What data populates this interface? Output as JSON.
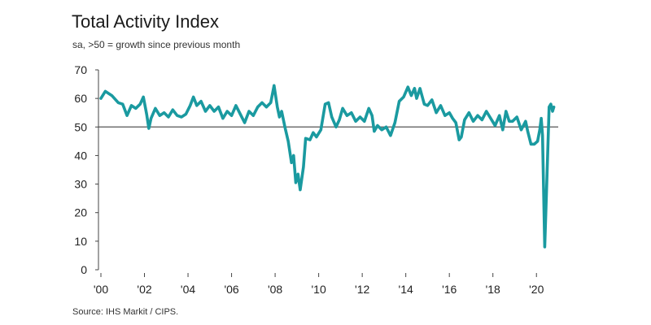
{
  "header": {
    "title": "Total Activity Index",
    "subtitle": "sa, >50 = growth since previous month"
  },
  "footer": {
    "source": "Source: IHS Markit / CIPS."
  },
  "colors": {
    "series": "#1a9aa0",
    "axis": "#444444",
    "reference": "#555555"
  },
  "chart_data": {
    "type": "line",
    "title": "Total Activity Index",
    "subtitle": "sa, >50 = growth since previous month",
    "xlabel": "",
    "ylabel": "",
    "xlim": [
      2000,
      2021
    ],
    "ylim": [
      0,
      70
    ],
    "y_ticks": [
      0,
      10,
      20,
      30,
      40,
      50,
      60,
      70
    ],
    "x_ticks": [
      {
        "value": 2000,
        "label": "'00"
      },
      {
        "value": 2002,
        "label": "'02"
      },
      {
        "value": 2004,
        "label": "'04"
      },
      {
        "value": 2006,
        "label": "'06"
      },
      {
        "value": 2008,
        "label": "'08"
      },
      {
        "value": 2010,
        "label": "'10"
      },
      {
        "value": 2012,
        "label": "'12"
      },
      {
        "value": 2014,
        "label": "'14"
      },
      {
        "value": 2016,
        "label": "'16"
      },
      {
        "value": 2018,
        "label": "'18"
      },
      {
        "value": 2020,
        "label": "'20"
      }
    ],
    "reference_line": 50,
    "grid": false,
    "series": [
      {
        "values": [
          [
            2000.0,
            60.0
          ],
          [
            2000.2,
            62.5
          ],
          [
            2000.5,
            61.0
          ],
          [
            2000.8,
            58.5
          ],
          [
            2001.0,
            58.0
          ],
          [
            2001.2,
            54.0
          ],
          [
            2001.4,
            57.5
          ],
          [
            2001.6,
            56.5
          ],
          [
            2001.8,
            58.0
          ],
          [
            2001.95,
            60.5
          ],
          [
            2002.1,
            54.5
          ],
          [
            2002.2,
            49.5
          ],
          [
            2002.3,
            53.0
          ],
          [
            2002.5,
            56.5
          ],
          [
            2002.7,
            54.0
          ],
          [
            2002.9,
            55.0
          ],
          [
            2003.1,
            53.5
          ],
          [
            2003.3,
            56.0
          ],
          [
            2003.5,
            54.0
          ],
          [
            2003.7,
            53.5
          ],
          [
            2003.9,
            54.5
          ],
          [
            2004.1,
            57.5
          ],
          [
            2004.25,
            60.5
          ],
          [
            2004.4,
            57.5
          ],
          [
            2004.6,
            59.0
          ],
          [
            2004.8,
            55.5
          ],
          [
            2005.0,
            57.5
          ],
          [
            2005.2,
            55.5
          ],
          [
            2005.4,
            57.0
          ],
          [
            2005.6,
            53.0
          ],
          [
            2005.8,
            55.5
          ],
          [
            2006.0,
            54.0
          ],
          [
            2006.2,
            57.5
          ],
          [
            2006.4,
            54.5
          ],
          [
            2006.6,
            51.5
          ],
          [
            2006.8,
            55.5
          ],
          [
            2007.0,
            54.0
          ],
          [
            2007.2,
            57.0
          ],
          [
            2007.4,
            58.5
          ],
          [
            2007.6,
            57.0
          ],
          [
            2007.8,
            58.5
          ],
          [
            2007.95,
            64.5
          ],
          [
            2008.1,
            57.0
          ],
          [
            2008.2,
            53.5
          ],
          [
            2008.3,
            55.5
          ],
          [
            2008.45,
            50.0
          ],
          [
            2008.6,
            45.0
          ],
          [
            2008.75,
            37.5
          ],
          [
            2008.85,
            40.0
          ],
          [
            2008.95,
            30.5
          ],
          [
            2009.05,
            33.5
          ],
          [
            2009.15,
            28.0
          ],
          [
            2009.3,
            36.0
          ],
          [
            2009.4,
            46.0
          ],
          [
            2009.6,
            45.5
          ],
          [
            2009.75,
            48.0
          ],
          [
            2009.9,
            46.5
          ],
          [
            2010.1,
            49.0
          ],
          [
            2010.3,
            58.0
          ],
          [
            2010.45,
            58.5
          ],
          [
            2010.6,
            53.5
          ],
          [
            2010.8,
            50.0
          ],
          [
            2010.95,
            52.5
          ],
          [
            2011.1,
            56.5
          ],
          [
            2011.3,
            54.0
          ],
          [
            2011.5,
            55.0
          ],
          [
            2011.7,
            52.0
          ],
          [
            2011.9,
            53.5
          ],
          [
            2012.1,
            52.0
          ],
          [
            2012.3,
            56.5
          ],
          [
            2012.45,
            54.0
          ],
          [
            2012.55,
            48.5
          ],
          [
            2012.7,
            50.5
          ],
          [
            2012.9,
            49.0
          ],
          [
            2013.1,
            50.0
          ],
          [
            2013.3,
            47.0
          ],
          [
            2013.5,
            51.5
          ],
          [
            2013.7,
            59.0
          ],
          [
            2013.9,
            60.5
          ],
          [
            2014.1,
            64.0
          ],
          [
            2014.25,
            61.0
          ],
          [
            2014.4,
            63.5
          ],
          [
            2014.5,
            60.0
          ],
          [
            2014.65,
            63.5
          ],
          [
            2014.85,
            58.0
          ],
          [
            2015.0,
            57.5
          ],
          [
            2015.2,
            59.5
          ],
          [
            2015.4,
            55.0
          ],
          [
            2015.6,
            57.5
          ],
          [
            2015.8,
            54.0
          ],
          [
            2016.0,
            55.0
          ],
          [
            2016.15,
            53.0
          ],
          [
            2016.3,
            51.5
          ],
          [
            2016.45,
            45.5
          ],
          [
            2016.55,
            46.5
          ],
          [
            2016.7,
            52.5
          ],
          [
            2016.9,
            55.0
          ],
          [
            2017.1,
            52.0
          ],
          [
            2017.3,
            54.0
          ],
          [
            2017.5,
            52.5
          ],
          [
            2017.7,
            55.5
          ],
          [
            2017.9,
            53.0
          ],
          [
            2018.1,
            50.5
          ],
          [
            2018.3,
            54.0
          ],
          [
            2018.45,
            49.0
          ],
          [
            2018.6,
            55.5
          ],
          [
            2018.75,
            52.0
          ],
          [
            2018.9,
            52.0
          ],
          [
            2019.1,
            53.5
          ],
          [
            2019.3,
            49.0
          ],
          [
            2019.5,
            52.0
          ],
          [
            2019.6,
            48.5
          ],
          [
            2019.75,
            44.0
          ],
          [
            2019.9,
            44.0
          ],
          [
            2020.05,
            45.0
          ],
          [
            2020.15,
            49.0
          ],
          [
            2020.22,
            53.0
          ],
          [
            2020.28,
            47.0
          ],
          [
            2020.38,
            8.0
          ],
          [
            2020.48,
            32.0
          ],
          [
            2020.58,
            57.0
          ],
          [
            2020.66,
            58.0
          ],
          [
            2020.74,
            55.5
          ],
          [
            2020.8,
            57.0
          ]
        ]
      }
    ]
  }
}
